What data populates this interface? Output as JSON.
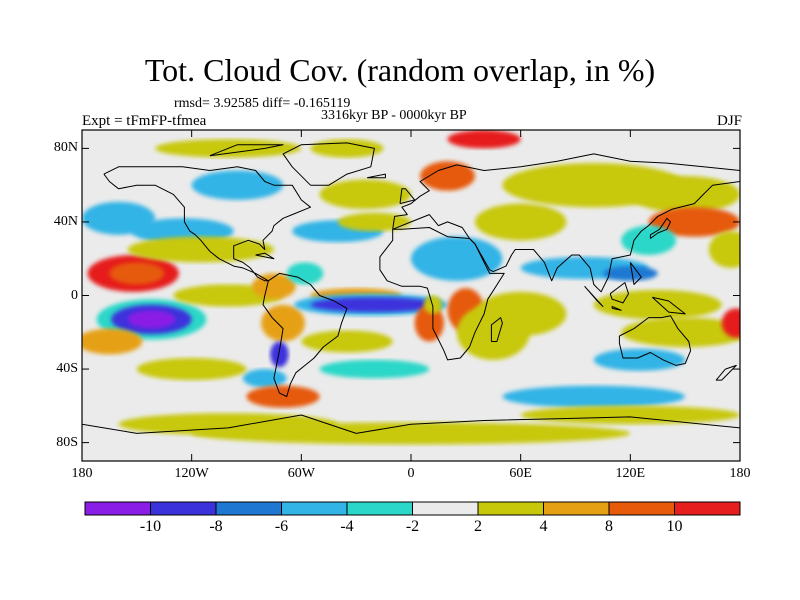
{
  "title": "Tot. Cloud Cov. (random overlap, in %)",
  "stats": "rmsd= 3.92585 diff= -0.165119",
  "experiment": "Expt = tFmFP-tfmea",
  "period": "3316kyr BP - 0000kyr BP",
  "season": "DJF",
  "y_ticks": [
    "80N",
    "40N",
    "0",
    "40S",
    "80S"
  ],
  "x_ticks": [
    "180",
    "120W",
    "60W",
    "0",
    "60E",
    "120E",
    "180"
  ],
  "colorbar": {
    "labels": [
      "-10",
      "-8",
      "-6",
      "-4",
      "-2",
      "2",
      "4",
      "8",
      "10"
    ],
    "colors": [
      "#8a1ee6",
      "#3c32dc",
      "#1e78d2",
      "#32b4e6",
      "#2ad7c8",
      "#ebebeb",
      "#c8c80a",
      "#e6a014",
      "#e65a0a",
      "#e61e1e"
    ]
  },
  "map": {
    "lon_range": [
      -180,
      180
    ],
    "lat_range": [
      -90,
      90
    ],
    "anomalies": [
      {
        "lon": -152,
        "lat": 12,
        "rx": 25,
        "ry": 10,
        "level": 9
      },
      {
        "lon": -150,
        "lat": 12,
        "rx": 15,
        "ry": 6,
        "level": 8
      },
      {
        "lon": -142,
        "lat": -13,
        "rx": 30,
        "ry": 11,
        "level": 4
      },
      {
        "lon": -142,
        "lat": -13,
        "rx": 22,
        "ry": 8,
        "level": 1
      },
      {
        "lon": -142,
        "lat": -13,
        "rx": 13,
        "ry": 5,
        "level": 0
      },
      {
        "lon": -165,
        "lat": -25,
        "rx": 18,
        "ry": 7,
        "level": 7
      },
      {
        "lon": -160,
        "lat": 42,
        "rx": 20,
        "ry": 9,
        "level": 3
      },
      {
        "lon": -125,
        "lat": 35,
        "rx": 28,
        "ry": 7,
        "level": 3
      },
      {
        "lon": -115,
        "lat": 25,
        "rx": 40,
        "ry": 7,
        "level": 6
      },
      {
        "lon": -100,
        "lat": 0,
        "rx": 30,
        "ry": 6,
        "level": 6
      },
      {
        "lon": -75,
        "lat": 5,
        "rx": 12,
        "ry": 7,
        "level": 7
      },
      {
        "lon": -70,
        "lat": -15,
        "rx": 12,
        "ry": 10,
        "level": 7
      },
      {
        "lon": -58,
        "lat": 12,
        "rx": 10,
        "ry": 6,
        "level": 4
      },
      {
        "lon": -72,
        "lat": -32,
        "rx": 5,
        "ry": 7,
        "level": 1
      },
      {
        "lon": -80,
        "lat": -45,
        "rx": 12,
        "ry": 5,
        "level": 3
      },
      {
        "lon": -70,
        "lat": -55,
        "rx": 20,
        "ry": 6,
        "level": 8
      },
      {
        "lon": -120,
        "lat": -40,
        "rx": 30,
        "ry": 6,
        "level": 6
      },
      {
        "lon": -100,
        "lat": -70,
        "rx": 60,
        "ry": 6,
        "level": 6
      },
      {
        "lon": -95,
        "lat": 60,
        "rx": 25,
        "ry": 8,
        "level": 3
      },
      {
        "lon": -100,
        "lat": 80,
        "rx": 40,
        "ry": 5,
        "level": 6
      },
      {
        "lon": -35,
        "lat": 80,
        "rx": 20,
        "ry": 5,
        "level": 6
      },
      {
        "lon": -25,
        "lat": 55,
        "rx": 25,
        "ry": 8,
        "level": 6
      },
      {
        "lon": -40,
        "lat": 35,
        "rx": 25,
        "ry": 6,
        "level": 3
      },
      {
        "lon": -20,
        "lat": 40,
        "rx": 20,
        "ry": 5,
        "level": 6
      },
      {
        "lon": -30,
        "lat": 0,
        "rx": 25,
        "ry": 4,
        "level": 7
      },
      {
        "lon": -22,
        "lat": -5,
        "rx": 42,
        "ry": 6,
        "level": 3
      },
      {
        "lon": -20,
        "lat": -5,
        "rx": 35,
        "ry": 4,
        "level": 1
      },
      {
        "lon": -35,
        "lat": -25,
        "rx": 25,
        "ry": 6,
        "level": 6
      },
      {
        "lon": -20,
        "lat": -40,
        "rx": 30,
        "ry": 5,
        "level": 4
      },
      {
        "lon": 10,
        "lat": -15,
        "rx": 8,
        "ry": 10,
        "level": 8
      },
      {
        "lon": 12,
        "lat": -5,
        "rx": 5,
        "ry": 5,
        "level": 6
      },
      {
        "lon": 30,
        "lat": -8,
        "rx": 10,
        "ry": 12,
        "level": 8
      },
      {
        "lon": 45,
        "lat": -20,
        "rx": 20,
        "ry": 15,
        "level": 6
      },
      {
        "lon": 60,
        "lat": -10,
        "rx": 25,
        "ry": 12,
        "level": 6
      },
      {
        "lon": 25,
        "lat": 20,
        "rx": 25,
        "ry": 12,
        "level": 3
      },
      {
        "lon": 60,
        "lat": 40,
        "rx": 25,
        "ry": 10,
        "level": 6
      },
      {
        "lon": 20,
        "lat": 65,
        "rx": 15,
        "ry": 8,
        "level": 8
      },
      {
        "lon": 40,
        "lat": 85,
        "rx": 20,
        "ry": 5,
        "level": 9
      },
      {
        "lon": 100,
        "lat": 60,
        "rx": 50,
        "ry": 12,
        "level": 6
      },
      {
        "lon": 150,
        "lat": 55,
        "rx": 30,
        "ry": 10,
        "level": 6
      },
      {
        "lon": 155,
        "lat": 40,
        "rx": 25,
        "ry": 8,
        "level": 8
      },
      {
        "lon": 130,
        "lat": 30,
        "rx": 15,
        "ry": 8,
        "level": 4
      },
      {
        "lon": 95,
        "lat": 15,
        "rx": 35,
        "ry": 6,
        "level": 3
      },
      {
        "lon": 120,
        "lat": 12,
        "rx": 15,
        "ry": 4,
        "level": 2
      },
      {
        "lon": 135,
        "lat": -5,
        "rx": 35,
        "ry": 8,
        "level": 6
      },
      {
        "lon": 150,
        "lat": -20,
        "rx": 35,
        "ry": 8,
        "level": 6
      },
      {
        "lon": 125,
        "lat": -35,
        "rx": 25,
        "ry": 6,
        "level": 3
      },
      {
        "lon": 178,
        "lat": -15,
        "rx": 8,
        "ry": 8,
        "level": 9
      },
      {
        "lon": 175,
        "lat": 25,
        "rx": 12,
        "ry": 10,
        "level": 6
      },
      {
        "lon": 100,
        "lat": -55,
        "rx": 50,
        "ry": 6,
        "level": 3
      },
      {
        "lon": 120,
        "lat": -65,
        "rx": 60,
        "ry": 5,
        "level": 6
      },
      {
        "lon": 0,
        "lat": -75,
        "rx": 120,
        "ry": 6,
        "level": 6
      }
    ],
    "coastlines": [
      [
        [
          -168,
          66
        ],
        [
          -160,
          70
        ],
        [
          -140,
          70
        ],
        [
          -125,
          70
        ],
        [
          -110,
          68
        ],
        [
          -95,
          70
        ],
        [
          -85,
          68
        ],
        [
          -80,
          62
        ],
        [
          -75,
          60
        ],
        [
          -65,
          60
        ],
        [
          -60,
          52
        ],
        [
          -55,
          48
        ],
        [
          -65,
          44
        ],
        [
          -70,
          42
        ],
        [
          -75,
          38
        ],
        [
          -76,
          35
        ],
        [
          -81,
          30
        ],
        [
          -80,
          25
        ],
        [
          -83,
          28
        ],
        [
          -89,
          30
        ],
        [
          -97,
          27
        ],
        [
          -97,
          20
        ],
        [
          -92,
          18
        ],
        [
          -88,
          15
        ],
        [
          -84,
          10
        ],
        [
          -80,
          8
        ],
        [
          -78,
          8
        ],
        [
          -85,
          12
        ],
        [
          -92,
          15
        ],
        [
          -97,
          16
        ],
        [
          -105,
          20
        ],
        [
          -110,
          24
        ],
        [
          -115,
          30
        ],
        [
          -118,
          33
        ],
        [
          -121,
          35
        ],
        [
          -124,
          40
        ],
        [
          -124,
          48
        ],
        [
          -130,
          55
        ],
        [
          -140,
          60
        ],
        [
          -150,
          60
        ],
        [
          -160,
          58
        ],
        [
          -165,
          62
        ],
        [
          -168,
          66
        ]
      ],
      [
        [
          -78,
          8
        ],
        [
          -72,
          12
        ],
        [
          -62,
          10
        ],
        [
          -55,
          6
        ],
        [
          -50,
          0
        ],
        [
          -42,
          -3
        ],
        [
          -35,
          -7
        ],
        [
          -38,
          -15
        ],
        [
          -40,
          -22
        ],
        [
          -48,
          -28
        ],
        [
          -53,
          -34
        ],
        [
          -58,
          -38
        ],
        [
          -63,
          -42
        ],
        [
          -66,
          -48
        ],
        [
          -68,
          -55
        ],
        [
          -72,
          -53
        ],
        [
          -75,
          -45
        ],
        [
          -72,
          -30
        ],
        [
          -70,
          -18
        ],
        [
          -76,
          -12
        ],
        [
          -81,
          -5
        ],
        [
          -80,
          0
        ],
        [
          -78,
          8
        ]
      ],
      [
        [
          -10,
          36
        ],
        [
          -5,
          36
        ],
        [
          10,
          37
        ],
        [
          20,
          32
        ],
        [
          32,
          31
        ],
        [
          35,
          28
        ],
        [
          43,
          12
        ],
        [
          51,
          12
        ],
        [
          42,
          -2
        ],
        [
          40,
          -10
        ],
        [
          35,
          -20
        ],
        [
          32,
          -28
        ],
        [
          27,
          -34
        ],
        [
          20,
          -35
        ],
        [
          18,
          -30
        ],
        [
          12,
          -18
        ],
        [
          12,
          -6
        ],
        [
          9,
          4
        ],
        [
          5,
          5
        ],
        [
          -5,
          5
        ],
        [
          -13,
          8
        ],
        [
          -17,
          14
        ],
        [
          -17,
          21
        ],
        [
          -10,
          30
        ],
        [
          -10,
          36
        ]
      ],
      [
        [
          -10,
          36
        ],
        [
          -9,
          43
        ],
        [
          -2,
          44
        ],
        [
          -5,
          48
        ],
        [
          0,
          50
        ],
        [
          5,
          54
        ],
        [
          10,
          57
        ],
        [
          5,
          62
        ],
        [
          15,
          68
        ],
        [
          25,
          71
        ],
        [
          40,
          68
        ],
        [
          60,
          70
        ],
        [
          80,
          73
        ],
        [
          100,
          77
        ],
        [
          120,
          73
        ],
        [
          140,
          72
        ],
        [
          160,
          70
        ],
        [
          180,
          68
        ],
        [
          180,
          62
        ],
        [
          165,
          60
        ],
        [
          160,
          55
        ],
        [
          155,
          50
        ],
        [
          143,
          47
        ],
        [
          135,
          43
        ],
        [
          130,
          38
        ],
        [
          126,
          35
        ],
        [
          122,
          30
        ],
        [
          120,
          22
        ],
        [
          110,
          20
        ],
        [
          108,
          10
        ],
        [
          104,
          2
        ],
        [
          100,
          6
        ],
        [
          98,
          15
        ],
        [
          92,
          22
        ],
        [
          88,
          22
        ],
        [
          80,
          15
        ],
        [
          77,
          8
        ],
        [
          73,
          18
        ],
        [
          67,
          25
        ],
        [
          57,
          25
        ],
        [
          55,
          22
        ],
        [
          52,
          16
        ],
        [
          45,
          13
        ],
        [
          43,
          14
        ],
        [
          35,
          28
        ],
        [
          32,
          31
        ],
        [
          28,
          37
        ],
        [
          20,
          40
        ],
        [
          15,
          38
        ],
        [
          10,
          44
        ],
        [
          0,
          40
        ],
        [
          -10,
          36
        ]
      ],
      [
        [
          -55,
          60
        ],
        [
          -45,
          60
        ],
        [
          -35,
          66
        ],
        [
          -22,
          70
        ],
        [
          -20,
          80
        ],
        [
          -35,
          83
        ],
        [
          -60,
          82
        ],
        [
          -70,
          77
        ],
        [
          -65,
          70
        ],
        [
          -55,
          60
        ]
      ],
      [
        [
          114,
          -22
        ],
        [
          122,
          -18
        ],
        [
          130,
          -12
        ],
        [
          137,
          -12
        ],
        [
          142,
          -11
        ],
        [
          146,
          -18
        ],
        [
          152,
          -25
        ],
        [
          153,
          -30
        ],
        [
          150,
          -37
        ],
        [
          145,
          -38
        ],
        [
          138,
          -35
        ],
        [
          131,
          -31
        ],
        [
          124,
          -34
        ],
        [
          116,
          -34
        ],
        [
          114,
          -26
        ],
        [
          114,
          -22
        ]
      ],
      [
        [
          44,
          -25
        ],
        [
          47,
          -25
        ],
        [
          50,
          -15
        ],
        [
          49,
          -12
        ],
        [
          44,
          -16
        ],
        [
          44,
          -25
        ]
      ],
      [
        [
          131,
          31
        ],
        [
          135,
          34
        ],
        [
          140,
          36
        ],
        [
          142,
          40
        ],
        [
          140,
          42
        ],
        [
          136,
          36
        ],
        [
          131,
          33
        ],
        [
          131,
          31
        ]
      ],
      [
        [
          95,
          5
        ],
        [
          105,
          -6
        ],
        [
          102,
          -3
        ],
        [
          95,
          5
        ]
      ],
      [
        [
          110,
          -7
        ],
        [
          115,
          -8
        ],
        [
          110,
          -6
        ],
        [
          110,
          -7
        ]
      ],
      [
        [
          109,
          1
        ],
        [
          117,
          7
        ],
        [
          119,
          1
        ],
        [
          116,
          -4
        ],
        [
          110,
          -2
        ],
        [
          109,
          1
        ]
      ],
      [
        [
          132,
          -1
        ],
        [
          141,
          -3
        ],
        [
          150,
          -10
        ],
        [
          141,
          -9
        ],
        [
          132,
          -1
        ]
      ],
      [
        [
          -6,
          50
        ],
        [
          -5,
          58
        ],
        [
          -3,
          58
        ],
        [
          2,
          52
        ],
        [
          -6,
          50
        ]
      ],
      [
        [
          -24,
          64
        ],
        [
          -14,
          66
        ],
        [
          -14,
          64
        ],
        [
          -24,
          64
        ]
      ],
      [
        [
          -180,
          -70
        ],
        [
          -150,
          -75
        ],
        [
          -100,
          -72
        ],
        [
          -60,
          -65
        ],
        [
          -30,
          -75
        ],
        [
          0,
          -70
        ],
        [
          40,
          -68
        ],
        [
          80,
          -67
        ],
        [
          120,
          -66
        ],
        [
          160,
          -70
        ],
        [
          180,
          -72
        ]
      ],
      [
        [
          172,
          -40
        ],
        [
          178,
          -38
        ],
        [
          170,
          -46
        ],
        [
          167,
          -46
        ],
        [
          172,
          -40
        ]
      ],
      [
        [
          -85,
          22
        ],
        [
          -75,
          20
        ],
        [
          -80,
          23
        ],
        [
          -85,
          22
        ]
      ],
      [
        [
          -110,
          76
        ],
        [
          -80,
          80
        ],
        [
          -70,
          82
        ],
        [
          -95,
          82
        ],
        [
          -110,
          76
        ]
      ],
      [
        [
          120,
          18
        ],
        [
          126,
          10
        ],
        [
          122,
          6
        ],
        [
          120,
          18
        ]
      ]
    ]
  }
}
